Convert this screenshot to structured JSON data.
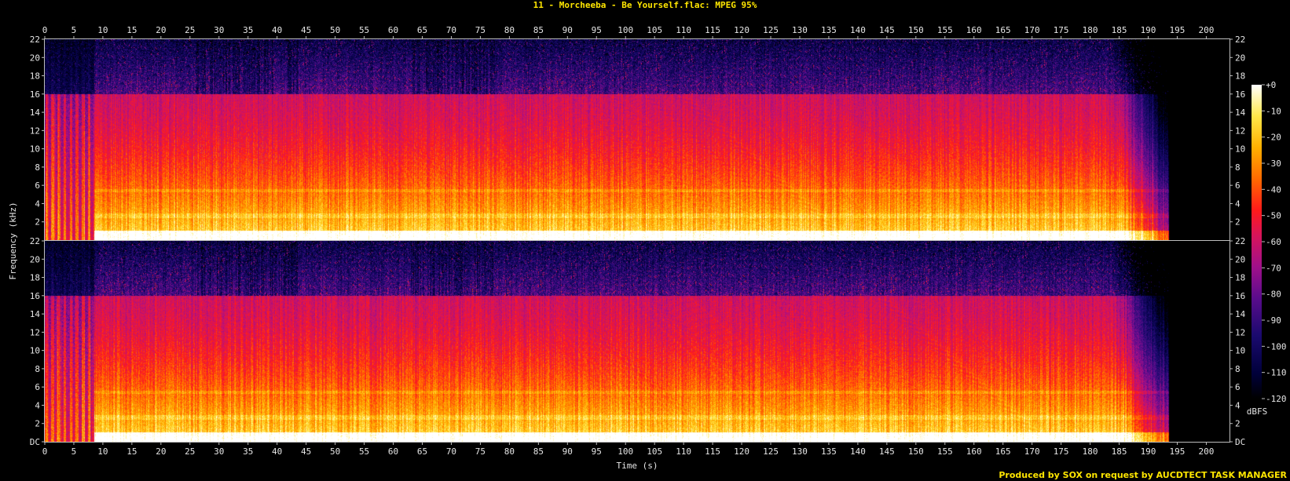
{
  "chart_data": {
    "type": "heatmap",
    "title": "11 - Morcheeba - Be Yourself.flac: MPEG 95%",
    "xlabel": "Time (s)",
    "ylabel": "Frequency (kHz)",
    "colorbar_label": "dBFS",
    "credit": "Produced by SOX on request by AUCDTECT TASK MANAGER",
    "x_ticks": [
      "0",
      "5",
      "10",
      "15",
      "20",
      "25",
      "30",
      "35",
      "40",
      "45",
      "50",
      "55",
      "60",
      "65",
      "70",
      "75",
      "80",
      "85",
      "90",
      "95",
      "100",
      "105",
      "110",
      "115",
      "120",
      "125",
      "130",
      "135",
      "140",
      "145",
      "150",
      "155",
      "160",
      "165",
      "170",
      "175",
      "180",
      "185",
      "190",
      "195",
      "200"
    ],
    "y_ticks": [
      "DC",
      "2",
      "4",
      "6",
      "8",
      "10",
      "12",
      "14",
      "16",
      "18",
      "20",
      "22"
    ],
    "colorbar_ticks": [
      "+0",
      "-10",
      "-20",
      "-30",
      "-40",
      "-50",
      "-60",
      "-70",
      "-80",
      "-90",
      "-100",
      "-110",
      "-120"
    ],
    "xlim": [
      0,
      204
    ],
    "ylim_khz": [
      0,
      22
    ],
    "zlim_dbfs": [
      -120,
      0
    ],
    "channels": 2,
    "duration_s": 193.5,
    "cutoff_khz": 16,
    "intro_end_s": 8.5,
    "colors": {
      "title": "#ffe600",
      "background": "#000000",
      "axis": "#bdbdbd",
      "text": "#e6e6e6"
    }
  }
}
